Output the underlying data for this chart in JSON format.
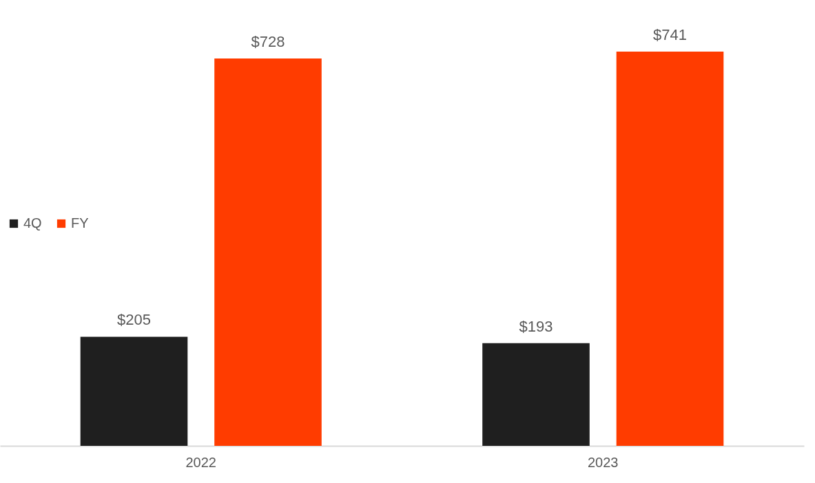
{
  "chart_data": {
    "type": "bar",
    "categories": [
      "2022",
      "2023"
    ],
    "series": [
      {
        "name": "4Q",
        "color": "#1f1f1f",
        "values": [
          205,
          193
        ],
        "value_labels": [
          "$205",
          "$193"
        ]
      },
      {
        "name": "FY",
        "color": "#ff3c00",
        "values": [
          728,
          741
        ],
        "value_labels": [
          "$728",
          "$741"
        ]
      }
    ],
    "legend": "left",
    "grid": false
  }
}
